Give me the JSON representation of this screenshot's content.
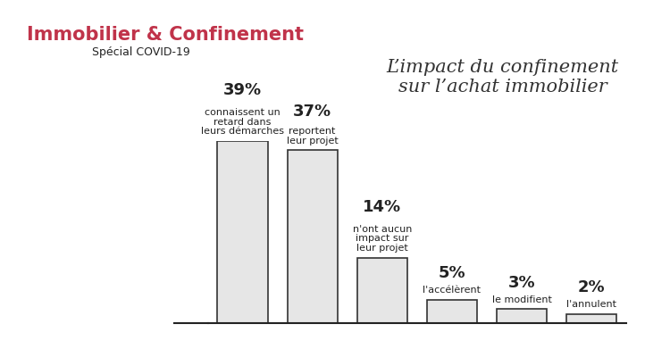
{
  "chart_data": {
    "type": "bar",
    "title": "Immobilier & Confinement",
    "subtitle": "Spécial COVID-19",
    "annotation": "L’impact du confinement\nsur l’achat immobilier",
    "categories": [
      "connaissent un\nretard dans\nleurs démarches",
      "reportent\nleur projet",
      "n'ont aucun\nimpact sur\nleur projet",
      "l'accélèrent",
      "le modifient",
      "l'annulent"
    ],
    "values": [
      39,
      37,
      14,
      5,
      3,
      2
    ],
    "value_labels": [
      "39%",
      "37%",
      "14%",
      "5%",
      "3%",
      "2%"
    ],
    "data_labels": true,
    "tick_labels": false,
    "color": "#e6e6e6",
    "ylim": [
      0,
      39
    ],
    "grid": false
  }
}
